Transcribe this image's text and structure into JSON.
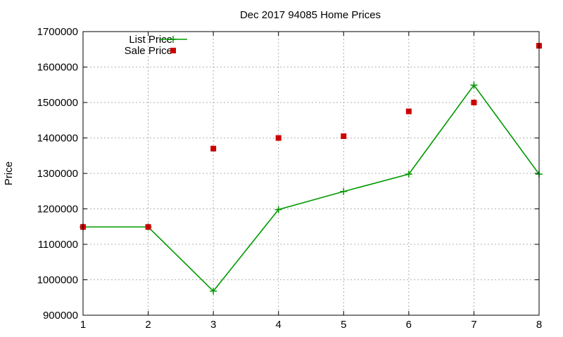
{
  "chart_data": {
    "type": "line",
    "title": "Dec 2017 94085 Home Prices",
    "xlabel": "",
    "ylabel": "Price",
    "x": [
      1,
      2,
      3,
      4,
      5,
      6,
      7,
      8
    ],
    "xlim": [
      1,
      8
    ],
    "ylim": [
      900000,
      1700000
    ],
    "x_ticks": [
      "1",
      "2",
      "3",
      "4",
      "5",
      "6",
      "7",
      "8"
    ],
    "y_ticks": [
      "900000",
      "1000000",
      "1100000",
      "1200000",
      "1300000",
      "1400000",
      "1500000",
      "1600000",
      "1700000"
    ],
    "grid": true,
    "legend_position": "top-left",
    "series": [
      {
        "name": "List Price",
        "kind": "linespoints",
        "marker": "plus",
        "color": "#009900",
        "values": [
          1149000,
          1149000,
          968000,
          1198000,
          1249000,
          1298000,
          1549000,
          1298000
        ]
      },
      {
        "name": "Sale Price",
        "kind": "points",
        "marker": "square",
        "color": "#cc0000",
        "values": [
          1149000,
          1149000,
          1370000,
          1400000,
          1405000,
          1475000,
          1500000,
          1660000
        ]
      }
    ]
  }
}
